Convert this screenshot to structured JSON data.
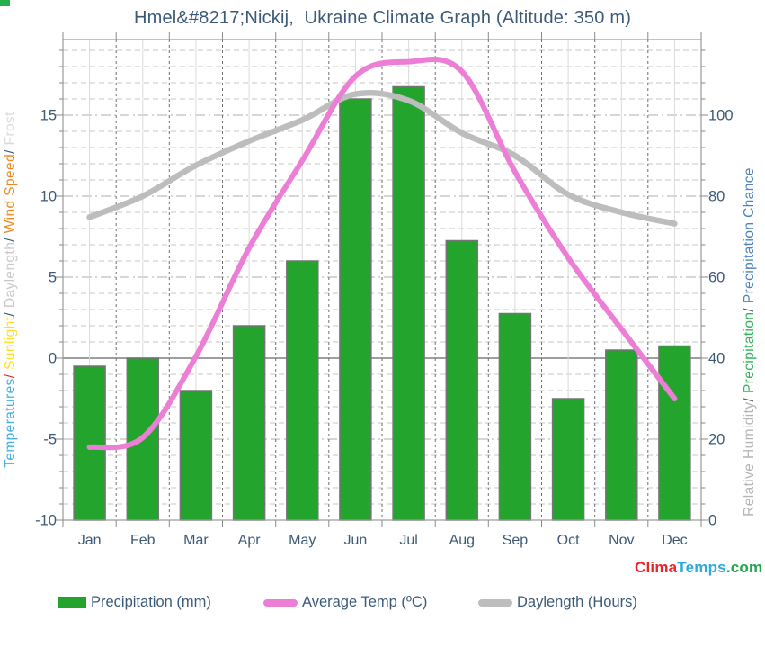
{
  "title": {
    "text": "Hmel&#8217;Nickij,  Ukraine Climate Graph (Altitude: 350 m)",
    "color": "#3C5A78"
  },
  "watermark": {
    "parts": [
      {
        "text": "Clima",
        "color": "#E8252A"
      },
      {
        "text": "Temps",
        "color": "#2BA9E0"
      },
      {
        "text": ".com",
        "color": "#21A74B"
      }
    ]
  },
  "axes": {
    "left": {
      "title_parts": [
        {
          "text": "Temperatures",
          "color": "#45AEE8"
        },
        {
          "text": "/",
          "color": "#E8252A"
        },
        {
          "text": " Sunlight",
          "color": "#FFDE2B"
        },
        {
          "text": "/",
          "color": "#3C5A78"
        },
        {
          "text": " Daylength",
          "color": "#C9C9C9"
        },
        {
          "text": "/",
          "color": "#3C5A78"
        },
        {
          "text": " Wind Speed",
          "color": "#F0861F"
        },
        {
          "text": "/",
          "color": "#3C5A78"
        },
        {
          "text": " Frost",
          "color": "#DBDBDB"
        }
      ],
      "ticks": [
        15,
        10,
        5,
        0,
        -5,
        -10
      ]
    },
    "right": {
      "title_parts": [
        {
          "text": "Relative Humidity",
          "color": "#B5B5B5"
        },
        {
          "text": "/",
          "color": "#3C5A78"
        },
        {
          "text": " Precipitation",
          "color": "#2FB457"
        },
        {
          "text": "/",
          "color": "#3C5A78"
        },
        {
          "text": " Precipitation Chance",
          "color": "#4D82C4"
        }
      ],
      "ticks": [
        100,
        80,
        60,
        40,
        20,
        0
      ]
    }
  },
  "legend": [
    {
      "label": "Precipitation (mm)",
      "type": "bar",
      "color": "#23A42D"
    },
    {
      "label": "Average Temp (ºC)",
      "type": "line",
      "color": "#EC7FD5"
    },
    {
      "label": "Daylength (Hours)",
      "type": "line",
      "color": "#BDBDBD"
    }
  ],
  "chart_data": {
    "type": "bar+line",
    "categories": [
      "Jan",
      "Feb",
      "Mar",
      "Apr",
      "May",
      "Jun",
      "Jul",
      "Aug",
      "Sep",
      "Oct",
      "Nov",
      "Dec"
    ],
    "series": [
      {
        "name": "Precipitation (mm)",
        "type": "bar",
        "axis": "right",
        "color": "#23A42D",
        "values": [
          38,
          40,
          32,
          48,
          64,
          104,
          107,
          69,
          51,
          30,
          42,
          43
        ]
      },
      {
        "name": "Average Temp (ºC)",
        "type": "line",
        "axis": "left",
        "color": "#EC7FD5",
        "values": [
          -5.5,
          -4.9,
          0.1,
          6.8,
          12.2,
          17.4,
          18.3,
          17.7,
          11.5,
          6.2,
          1.8,
          -2.5
        ]
      },
      {
        "name": "Daylength (Hours)",
        "type": "line",
        "axis": "left",
        "color": "#BDBDBD",
        "values": [
          8.7,
          10.0,
          11.9,
          13.4,
          14.7,
          16.3,
          15.9,
          13.9,
          12.5,
          10.1,
          9.0,
          8.3
        ]
      }
    ],
    "left_axis_range": [
      -10,
      19.7
    ],
    "right_axis_range": [
      0,
      118.7
    ],
    "grid": "on",
    "legend_position": "bottom"
  }
}
